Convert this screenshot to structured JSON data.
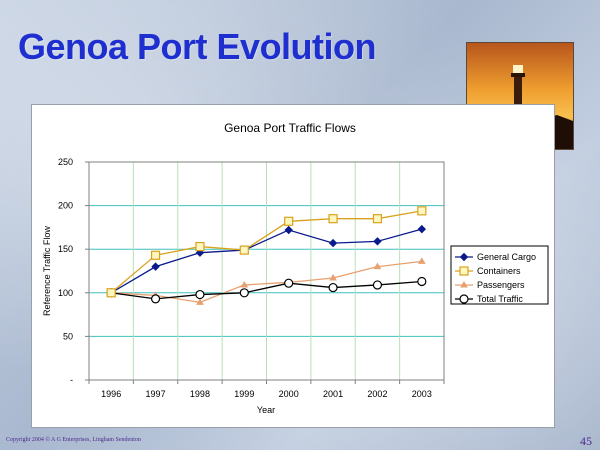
{
  "slide": {
    "title": "Genoa Port Evolution",
    "footer_copyright": "Copyright 2004 © A G Enterprises, Lingham Sendenton",
    "page_number": "45"
  },
  "photo": {
    "icon": "lighthouse-sunset-photo"
  },
  "colors": {
    "general_cargo": "#0a1a8c",
    "containers": "#d8a21e",
    "passengers": "#e8a070",
    "total_traffic": "#000000",
    "gridline": "#40c0c0"
  },
  "chart_data": {
    "type": "line",
    "title": "Genoa Port Traffic Flows",
    "xlabel": "Year",
    "ylabel": "Reference Traffic Flow",
    "categories": [
      "1996",
      "1997",
      "1998",
      "1999",
      "2000",
      "2001",
      "2002",
      "2003"
    ],
    "ylim": [
      0,
      250
    ],
    "yticks": [
      {
        "value": 0,
        "label": "-"
      },
      {
        "value": 50,
        "label": "50"
      },
      {
        "value": 100,
        "label": "100"
      },
      {
        "value": 150,
        "label": "150"
      },
      {
        "value": 200,
        "label": "200"
      },
      {
        "value": 250,
        "label": "250"
      }
    ],
    "grid": true,
    "legend_position": "right",
    "series": [
      {
        "name": "General Cargo",
        "marker": "diamond",
        "color": "#0a1a8c",
        "values": [
          100,
          130,
          146,
          149,
          172,
          157,
          159,
          173
        ]
      },
      {
        "name": "Containers",
        "marker": "square",
        "color": "#d8a21e",
        "values": [
          100,
          143,
          153,
          149,
          182,
          185,
          185,
          194
        ]
      },
      {
        "name": "Passengers",
        "marker": "triangle",
        "color": "#e8a070",
        "values": [
          100,
          97,
          89,
          109,
          112,
          117,
          130,
          136
        ]
      },
      {
        "name": "Total Traffic",
        "marker": "circle",
        "color": "#000000",
        "values": [
          100,
          93,
          98,
          100,
          111,
          106,
          109,
          113
        ]
      }
    ]
  }
}
